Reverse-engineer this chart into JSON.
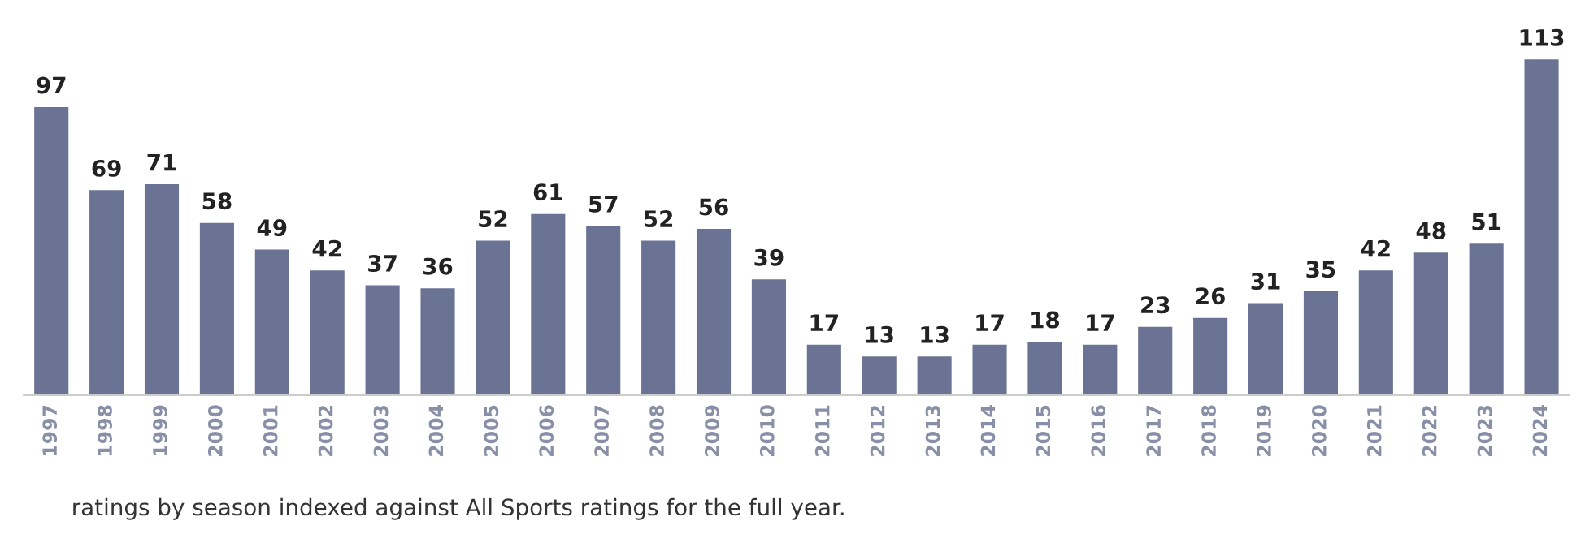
{
  "chart_data": {
    "type": "bar",
    "categories": [
      "1997",
      "1998",
      "1999",
      "2000",
      "2001",
      "2002",
      "2003",
      "2004",
      "2005",
      "2006",
      "2007",
      "2008",
      "2009",
      "2010",
      "2011",
      "2012",
      "2013",
      "2014",
      "2015",
      "2016",
      "2017",
      "2018",
      "2019",
      "2020",
      "2021",
      "2022",
      "2023",
      "2024"
    ],
    "values": [
      97,
      69,
      71,
      58,
      49,
      42,
      37,
      36,
      52,
      61,
      57,
      52,
      56,
      39,
      17,
      13,
      13,
      17,
      18,
      17,
      23,
      26,
      31,
      35,
      42,
      48,
      51,
      113
    ],
    "color": "#6b7394",
    "data_labels": true,
    "grid": false,
    "annotations": [
      "ratings by season indexed against All Sports ratings for the full year."
    ]
  }
}
